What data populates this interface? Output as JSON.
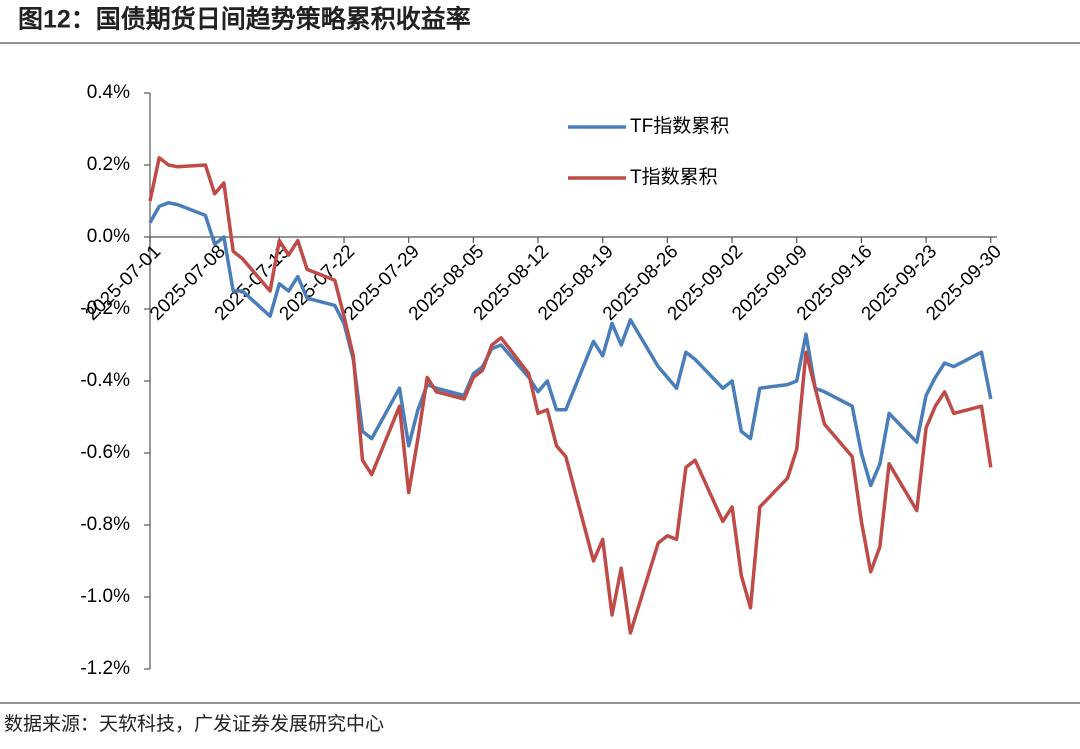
{
  "chart_data": {
    "type": "line",
    "title": "图12：国债期货日间趋势策略累积收益率",
    "source": "数据来源：天软科技，广发证券发展研究中心",
    "x": [
      "2025-07-01",
      "2025-07-02",
      "2025-07-03",
      "2025-07-04",
      "2025-07-07",
      "2025-07-08",
      "2025-07-09",
      "2025-07-10",
      "2025-07-11",
      "2025-07-14",
      "2025-07-15",
      "2025-07-16",
      "2025-07-17",
      "2025-07-18",
      "2025-07-21",
      "2025-07-22",
      "2025-07-23",
      "2025-07-24",
      "2025-07-25",
      "2025-07-28",
      "2025-07-29",
      "2025-07-30",
      "2025-07-31",
      "2025-08-01",
      "2025-08-04",
      "2025-08-05",
      "2025-08-06",
      "2025-08-07",
      "2025-08-08",
      "2025-08-11",
      "2025-08-12",
      "2025-08-13",
      "2025-08-14",
      "2025-08-15",
      "2025-08-18",
      "2025-08-19",
      "2025-08-20",
      "2025-08-21",
      "2025-08-22",
      "2025-08-25",
      "2025-08-26",
      "2025-08-27",
      "2025-08-28",
      "2025-08-29",
      "2025-09-01",
      "2025-09-02",
      "2025-09-03",
      "2025-09-04",
      "2025-09-05",
      "2025-09-08",
      "2025-09-09",
      "2025-09-10",
      "2025-09-11",
      "2025-09-12",
      "2025-09-15",
      "2025-09-16",
      "2025-09-17",
      "2025-09-18",
      "2025-09-19",
      "2025-09-22",
      "2025-09-23",
      "2025-09-24",
      "2025-09-25",
      "2025-09-26",
      "2025-09-29",
      "2025-09-30"
    ],
    "series": [
      {
        "name": "TF指数累积",
        "color": "#4a7ebb",
        "values": [
          0.04,
          0.085,
          0.095,
          0.09,
          0.06,
          -0.02,
          0.0,
          -0.15,
          -0.15,
          -0.22,
          -0.13,
          -0.15,
          -0.11,
          -0.17,
          -0.19,
          -0.24,
          -0.34,
          -0.54,
          -0.56,
          -0.42,
          -0.58,
          -0.48,
          -0.41,
          -0.42,
          -0.44,
          -0.38,
          -0.36,
          -0.31,
          -0.3,
          -0.39,
          -0.43,
          -0.4,
          -0.48,
          -0.48,
          -0.29,
          -0.33,
          -0.24,
          -0.3,
          -0.23,
          -0.36,
          -0.39,
          -0.42,
          -0.32,
          -0.34,
          -0.42,
          -0.4,
          -0.54,
          -0.56,
          -0.42,
          -0.41,
          -0.4,
          -0.27,
          -0.42,
          -0.43,
          -0.47,
          -0.6,
          -0.69,
          -0.63,
          -0.49,
          -0.57,
          -0.44,
          -0.39,
          -0.35,
          -0.36,
          -0.32,
          -0.45
        ]
      },
      {
        "name": "T指数累积",
        "color": "#be4b48",
        "values": [
          0.1,
          0.22,
          0.2,
          0.195,
          0.2,
          0.12,
          0.15,
          -0.04,
          -0.06,
          -0.15,
          -0.01,
          -0.05,
          -0.01,
          -0.09,
          -0.12,
          -0.22,
          -0.33,
          -0.62,
          -0.66,
          -0.47,
          -0.71,
          -0.56,
          -0.39,
          -0.43,
          -0.45,
          -0.39,
          -0.37,
          -0.3,
          -0.28,
          -0.38,
          -0.49,
          -0.48,
          -0.58,
          -0.61,
          -0.9,
          -0.84,
          -1.05,
          -0.92,
          -1.1,
          -0.85,
          -0.83,
          -0.84,
          -0.64,
          -0.62,
          -0.79,
          -0.75,
          -0.94,
          -1.03,
          -0.75,
          -0.67,
          -0.59,
          -0.32,
          -0.42,
          -0.52,
          -0.61,
          -0.79,
          -0.93,
          -0.86,
          -0.63,
          -0.76,
          -0.53,
          -0.47,
          -0.43,
          -0.49,
          -0.47,
          -0.64
        ]
      }
    ],
    "xlim": [
      "2025-07-01",
      "2025-10-01"
    ],
    "xticks": [
      "2025-07-01",
      "2025-07-08",
      "2025-07-15",
      "2025-07-22",
      "2025-07-29",
      "2025-08-05",
      "2025-08-12",
      "2025-08-19",
      "2025-08-26",
      "2025-09-02",
      "2025-09-09",
      "2025-09-16",
      "2025-09-23",
      "2025-09-30"
    ],
    "ylim": [
      -1.2,
      0.4
    ],
    "yticks": [
      {
        "value": 0.4,
        "label": "0.4%"
      },
      {
        "value": 0.2,
        "label": "0.2%"
      },
      {
        "value": 0,
        "label": "0.0%"
      },
      {
        "value": -0.2,
        "label": "-0.2%"
      },
      {
        "value": -0.4,
        "label": "-0.4%"
      },
      {
        "value": -0.6,
        "label": "-0.6%"
      },
      {
        "value": -0.8,
        "label": "-0.8%"
      },
      {
        "value": -1.0,
        "label": "-1.0%"
      },
      {
        "value": -1.2,
        "label": "-1.2%"
      }
    ],
    "grid": false,
    "legend": "top-right"
  }
}
